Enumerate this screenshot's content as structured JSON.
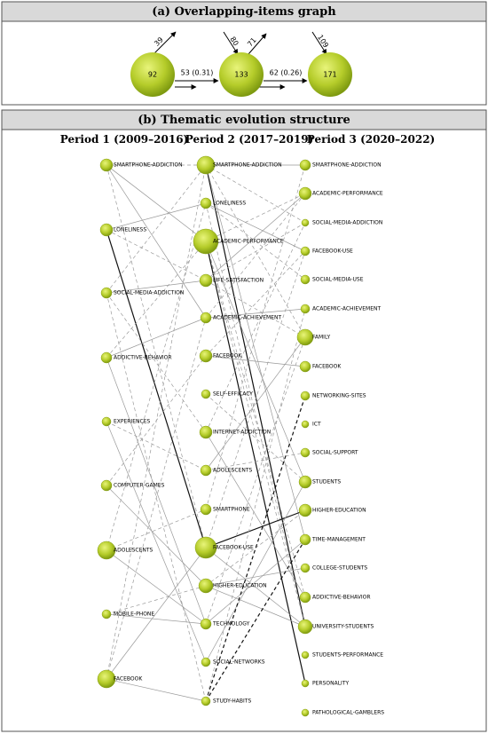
{
  "panel_a": {
    "title": "(a) Overlapping-items graph",
    "nodes": [
      {
        "label": "92"
      },
      {
        "label": "133"
      },
      {
        "label": "171"
      }
    ],
    "arrows": [
      {
        "label": "39"
      },
      {
        "label": "80"
      },
      {
        "label": "71"
      },
      {
        "label": "109"
      }
    ],
    "edges": [
      {
        "label": "53 (0.31)"
      },
      {
        "label": "62 (0.26)"
      }
    ]
  },
  "panel_b": {
    "title": "(b) Thematic evolution structure",
    "periods": [
      {
        "heading": "Period 1 (2009–2016)",
        "themes": [
          "SMARTPHONE-ADDICTION",
          "LONELINESS",
          "SOCIAL-MEDIA-ADDICTION",
          "ADDICTIVE-BEHAVIOR",
          "EXPERIENCES",
          "COMPUTER-GAMES",
          "ADOLESCENTS",
          "MOBILE-PHONE",
          "FACEBOOK"
        ]
      },
      {
        "heading": "Period 2 (2017–2019)",
        "themes": [
          "SMARTPHONE-ADDICTION",
          "LONELINESS",
          "ACADEMIC-PERFORMANCE",
          "LIFE-SATISFACTION",
          "ACADEMIC-ACHIEVEMENT",
          "FACEBOOK",
          "SELF-EFFICACY",
          "INTERNET-ADDICTION",
          "ADOLESCENTS",
          "SMARTPHONE",
          "FACEBOOK-USE",
          "HIGHER-EDUCATION",
          "TECHNOLOGY",
          "SOCIAL-NETWORKS",
          "STUDY-HABITS"
        ]
      },
      {
        "heading": "Period 3 (2020–2022)",
        "themes": [
          "SMARTPHONE-ADDICTION",
          "ACADEMIC-PERFORMANCE",
          "SOCIAL-MEDIA-ADDICTION",
          "FACEBOOK-USE",
          "SOCIAL-MEDIA-USE",
          "ACADEMIC-ACHIEVEMENT",
          "FAMILY",
          "FACEBOOK",
          "NETWORKING-SITES",
          "ICT",
          "SOCIAL-SUPPORT",
          "STUDENTS",
          "HIGHER-EDUCATION",
          "TIME-MANAGEMENT",
          "COLLEGE-STUDENTS",
          "ADDICTIVE-BEHAVIOR",
          "UNIVERSITY-STUDENTS",
          "STUDENTS-PERFORMANCE",
          "PERSONALITY",
          "PATHOLOGICAL-GAMBLERS"
        ]
      }
    ]
  }
}
